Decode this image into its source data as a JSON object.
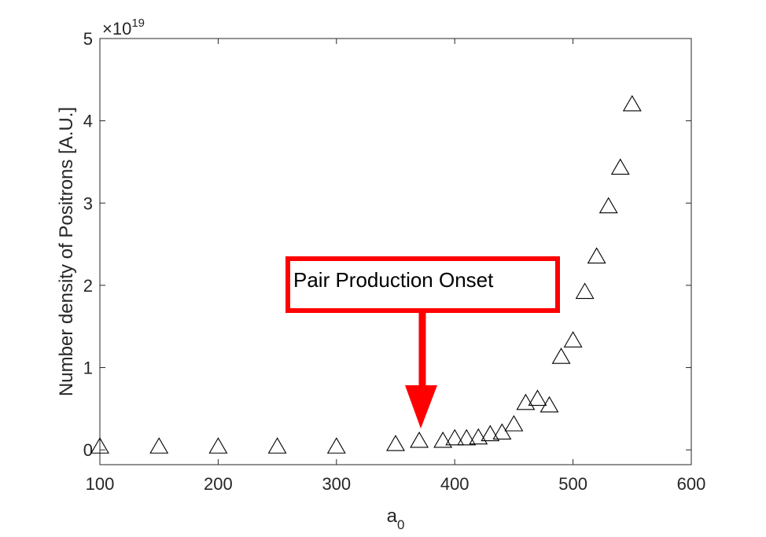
{
  "chart_data": {
    "type": "scatter",
    "title": "",
    "xlabel": "a",
    "xlabel_subscript": "0",
    "ylabel": "Number density of Positrons [A.U.]",
    "y_exponent_label": "×10",
    "y_exponent_power": "19",
    "xlim": [
      100,
      600
    ],
    "ylim": [
      -0.18,
      5
    ],
    "x_ticks": [
      100,
      200,
      300,
      400,
      500,
      600
    ],
    "x_tick_labels": [
      "100",
      "200",
      "300",
      "400",
      "500",
      "600"
    ],
    "y_ticks": [
      0,
      1,
      2,
      3,
      4,
      5
    ],
    "y_tick_labels": [
      "0",
      "1",
      "2",
      "3",
      "4",
      "5"
    ],
    "grid": false,
    "marker": "open-triangle",
    "marker_color": "#000000",
    "annotation": {
      "text": "Pair Production Onset",
      "box_color": "#ff0000",
      "arrow_color": "#ff0000",
      "points_to": {
        "x": 370,
        "y": 0.3
      }
    },
    "series": [
      {
        "x": [
          100,
          150,
          200,
          250,
          300,
          350,
          370,
          390,
          400,
          410,
          420,
          430,
          440,
          450,
          460,
          470,
          480,
          490,
          500,
          510,
          520,
          530,
          540,
          550
        ],
        "y": [
          0.03,
          0.03,
          0.03,
          0.03,
          0.03,
          0.06,
          0.1,
          0.1,
          0.13,
          0.13,
          0.14,
          0.18,
          0.2,
          0.3,
          0.56,
          0.61,
          0.53,
          1.12,
          1.32,
          1.91,
          2.34,
          2.95,
          3.42,
          4.19
        ]
      }
    ]
  }
}
